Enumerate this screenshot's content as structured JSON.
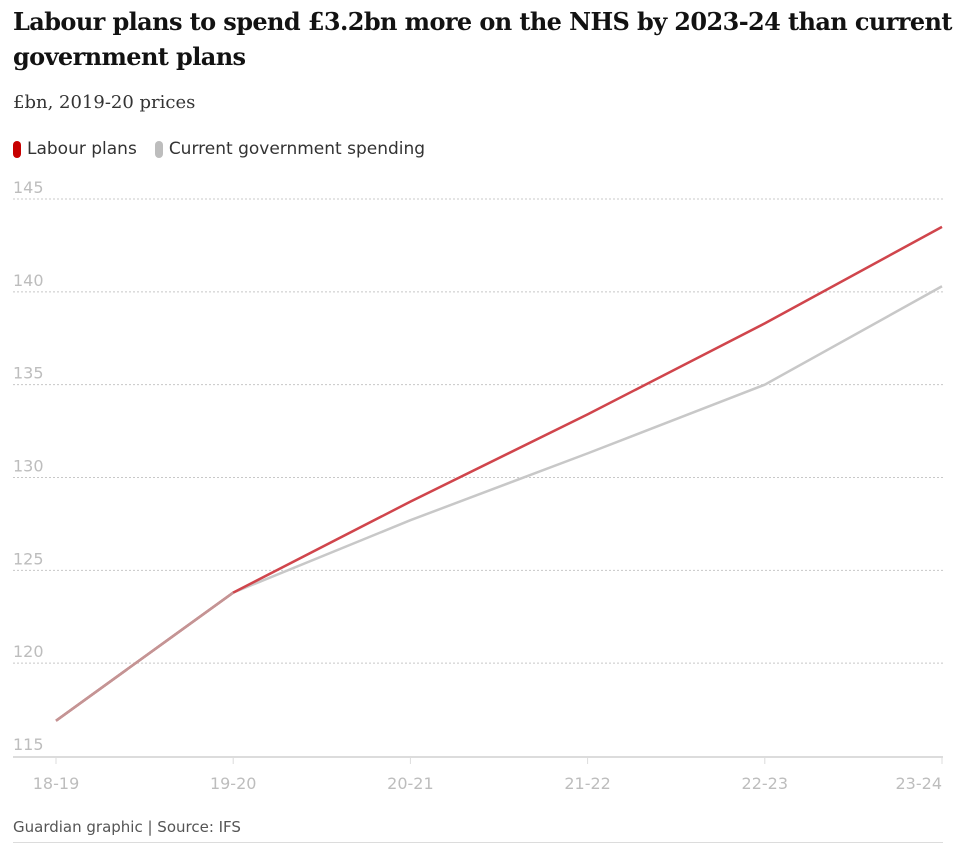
{
  "header": {
    "title": "Labour plans to spend £3.2bn more on the NHS by 2023-24 than current government plans",
    "subtitle": "£bn, 2019-20 prices"
  },
  "legend": [
    {
      "label": "Labour plans",
      "color": "#c70000"
    },
    {
      "label": "Current government spending",
      "color": "#bdbdbd"
    }
  ],
  "footer": {
    "source": "Guardian graphic | Source: IFS"
  },
  "chart_data": {
    "type": "line",
    "title": "Labour plans to spend £3.2bn more on the NHS by 2023-24 than current government plans",
    "subtitle": "£bn, 2019-20 prices",
    "xlabel": "",
    "ylabel": "£bn",
    "categories": [
      "18-19",
      "19-20",
      "20-21",
      "21-22",
      "22-23",
      "23-24"
    ],
    "series": [
      {
        "name": "Labour plans",
        "color": "#d0454c",
        "values": [
          116.9,
          123.8,
          128.7,
          133.4,
          138.3,
          143.5
        ]
      },
      {
        "name": "Current government spending",
        "color": "#c8c8c8",
        "values": [
          116.9,
          123.8,
          127.7,
          131.3,
          135.0,
          140.3
        ]
      }
    ],
    "overlap_color": "#c49595",
    "ylim": [
      115,
      145
    ],
    "yticks": [
      115,
      120,
      125,
      130,
      135,
      140,
      145
    ],
    "grid": true,
    "legend_position": "top-left"
  }
}
